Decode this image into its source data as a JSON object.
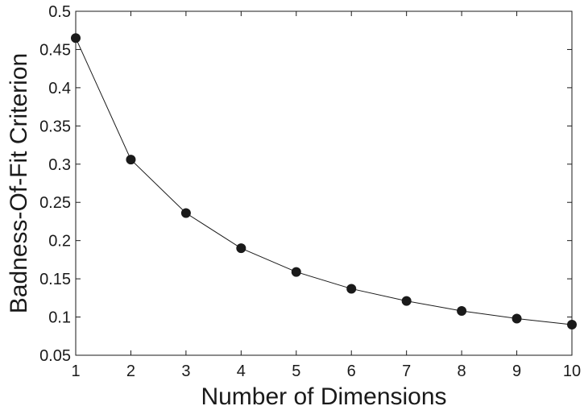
{
  "chart_data": {
    "type": "line",
    "title": "",
    "xlabel": "Number of Dimensions",
    "ylabel": "Badness-Of-Fit Criterion",
    "xlim": [
      1,
      10
    ],
    "ylim": [
      0.05,
      0.5
    ],
    "xticks": [
      1,
      2,
      3,
      4,
      5,
      6,
      7,
      8,
      9,
      10
    ],
    "yticks": [
      0.05,
      0.1,
      0.15,
      0.2,
      0.25,
      0.3,
      0.35,
      0.4,
      0.45,
      0.5
    ],
    "ytick_labels": [
      "0.05",
      "0.1",
      "0.15",
      "0.2",
      "0.25",
      "0.3",
      "0.35",
      "0.4",
      "0.45",
      "0.5"
    ],
    "grid": false,
    "legend": false,
    "series": [
      {
        "x": [
          1,
          2,
          3,
          4,
          5,
          6,
          7,
          8,
          9,
          10
        ],
        "values": [
          0.465,
          0.306,
          0.236,
          0.19,
          0.159,
          0.137,
          0.121,
          0.108,
          0.098,
          0.09
        ],
        "color": "#1a1a1a",
        "marker": "circle"
      }
    ]
  }
}
